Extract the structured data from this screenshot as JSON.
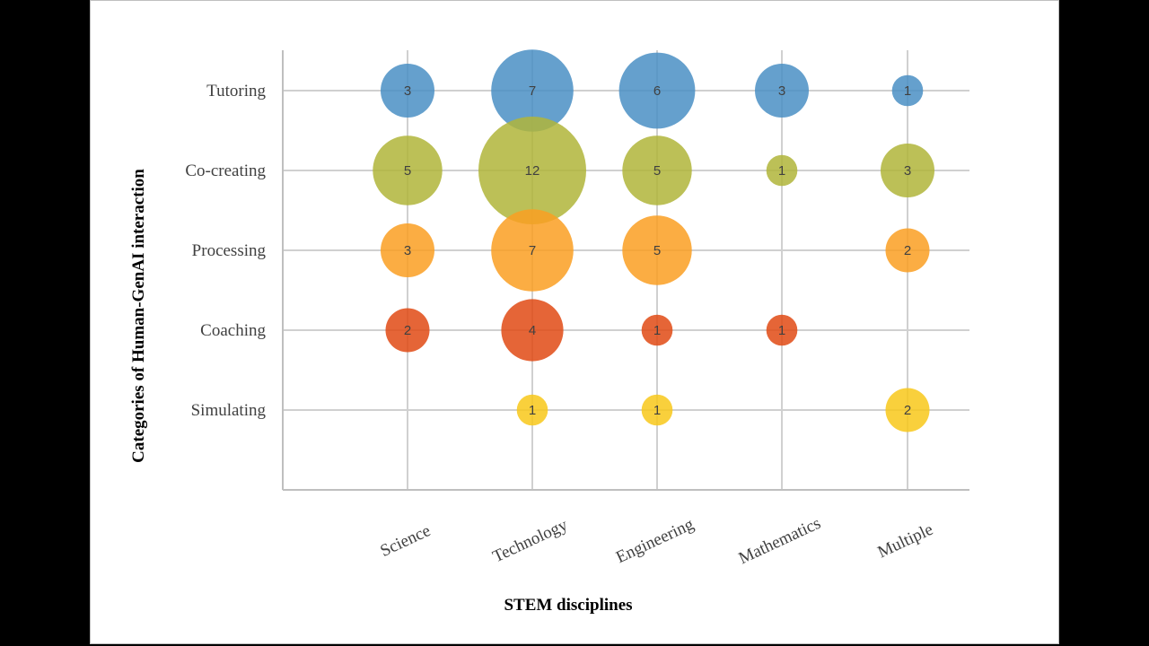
{
  "chart_data": {
    "type": "bubble",
    "title": "",
    "xlabel": "STEM disciplines",
    "ylabel": "Categories of Human-GenAI interaction",
    "x_categories": [
      "Science",
      "Technology",
      "Engineering",
      "Mathematics",
      "Multiple"
    ],
    "y_categories": [
      "Tutoring",
      "Co-creating",
      "Processing",
      "Coaching",
      "Simulating"
    ],
    "grid": true,
    "legend": "none",
    "series": [
      {
        "category": "Tutoring",
        "color": "#4a8fc4",
        "values": [
          3,
          7,
          6,
          3,
          1
        ]
      },
      {
        "category": "Co-creating",
        "color": "#b0b53a",
        "values": [
          5,
          12,
          5,
          1,
          3
        ]
      },
      {
        "category": "Processing",
        "color": "#fa9f22",
        "values": [
          3,
          7,
          5,
          null,
          2
        ]
      },
      {
        "category": "Coaching",
        "color": "#e04a14",
        "values": [
          2,
          4,
          1,
          1,
          null
        ]
      },
      {
        "category": "Simulating",
        "color": "#f8c81a",
        "values": [
          null,
          1,
          1,
          null,
          2
        ]
      }
    ]
  }
}
